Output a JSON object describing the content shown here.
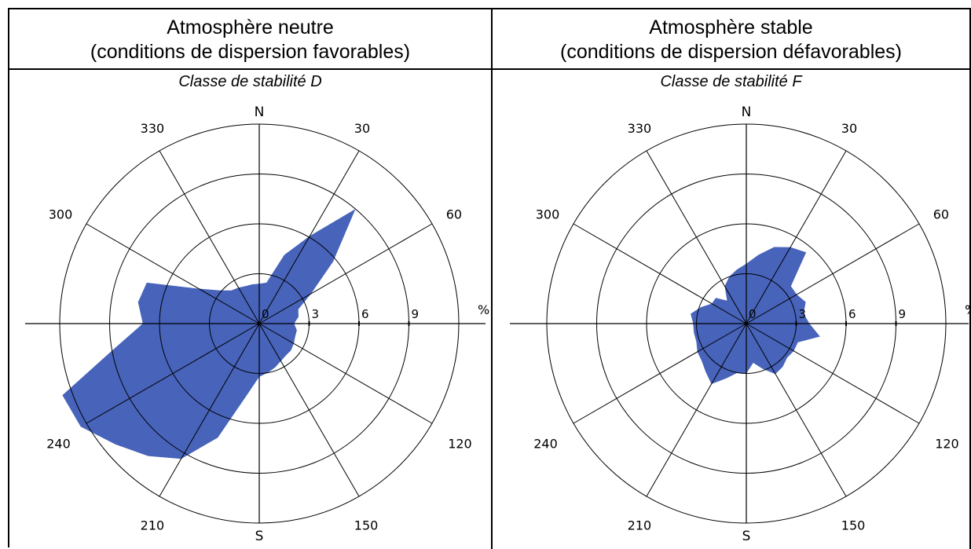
{
  "chart_data": [
    {
      "type": "polar-area",
      "header_line1": "Atmosphère neutre",
      "header_line2": "(conditions de dispersion favorables)",
      "subtitle": "Classe de stabilité D",
      "north_label": "N",
      "south_label": "S",
      "unit_label": "%",
      "angle_labels": [
        "30",
        "60",
        "120",
        "150",
        "210",
        "240",
        "300",
        "330"
      ],
      "radial_labels": [
        "0",
        "3",
        "6",
        "9"
      ],
      "rmax": 12,
      "fill_color": "#4763ba",
      "directions_deg": [
        0,
        10,
        20,
        30,
        40,
        50,
        60,
        70,
        80,
        90,
        100,
        110,
        120,
        130,
        140,
        150,
        160,
        170,
        180,
        190,
        200,
        210,
        220,
        230,
        240,
        250,
        260,
        270,
        280,
        290,
        300,
        310,
        320,
        330,
        340,
        350
      ],
      "values": [
        2.4,
        2.5,
        4.4,
        6.1,
        9.0,
        5.8,
        3.6,
        2.5,
        2.4,
        2.1,
        2.3,
        2.3,
        2.4,
        2.5,
        2.5,
        2.6,
        2.8,
        3.0,
        3.2,
        4.4,
        7.3,
        9.4,
        10.4,
        11.3,
        12.4,
        12.6,
        8.9,
        7.0,
        7.4,
        7.2,
        4.2,
        3.1,
        2.6,
        2.5,
        2.4,
        2.4
      ]
    },
    {
      "type": "polar-area",
      "header_line1": "Atmosphère stable",
      "header_line2": "(conditions de dispersion défavorables)",
      "subtitle": "Classe de stabilité F",
      "north_label": "N",
      "south_label": "S",
      "unit_label": "%",
      "angle_labels": [
        "30",
        "60",
        "120",
        "150",
        "210",
        "240",
        "300",
        "330"
      ],
      "radial_labels": [
        "0",
        "3",
        "6",
        "9"
      ],
      "rmax": 12,
      "fill_color": "#4763ba",
      "directions_deg": [
        0,
        10,
        20,
        30,
        40,
        50,
        60,
        70,
        80,
        90,
        100,
        110,
        120,
        130,
        140,
        150,
        160,
        170,
        180,
        190,
        200,
        210,
        220,
        230,
        240,
        250,
        260,
        270,
        280,
        290,
        300,
        310,
        320,
        330,
        340,
        350
      ],
      "values": [
        3.6,
        4.2,
        4.9,
        5.3,
        5.6,
        3.5,
        3.5,
        3.8,
        3.5,
        3.8,
        4.5,
        3.3,
        3.3,
        3.2,
        3.4,
        3.5,
        2.9,
        2.4,
        3.0,
        3.0,
        3.5,
        4.2,
        3.8,
        3.5,
        3.4,
        3.2,
        3.2,
        3.2,
        3.4,
        2.9,
        2.4,
        2.4,
        1.8,
        2.6,
        3.0,
        3.3
      ]
    }
  ]
}
